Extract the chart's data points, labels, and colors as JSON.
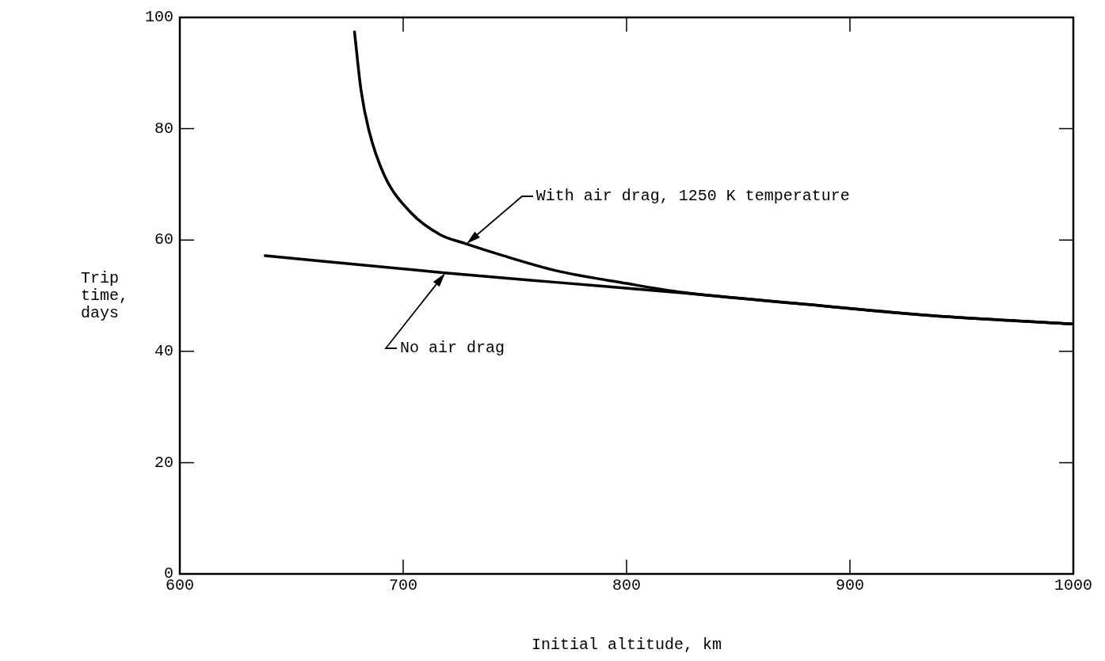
{
  "chart_data": {
    "type": "line",
    "xlabel": "Initial altitude, km",
    "ylabel": "Trip time, days",
    "xlim": [
      600,
      1000
    ],
    "xticks": [
      600,
      700,
      800,
      900,
      1000
    ],
    "ylim": [
      0,
      100
    ],
    "yticks": [
      0,
      20,
      40,
      60,
      80,
      100
    ],
    "grid": false,
    "legend": false,
    "marker": "none",
    "line_style": "solid",
    "series": [
      {
        "color": "#000000",
        "x": [
          678.2,
          681.1,
          684.6,
          691.6,
          703.5,
          716.4,
          728.3,
          744.7,
          768.4,
          800,
          825,
          878.7,
          937,
          1000
        ],
        "values": [
          97.4,
          87.0,
          79.8,
          71.6,
          64.9,
          61.0,
          59.3,
          57.2,
          54.5,
          52.2,
          50.6,
          48.5,
          46.4,
          44.9
        ]
      },
      {
        "color": "#000000",
        "x": [
          638.2,
          718.8,
          768.4,
          825,
          878.7,
          937,
          1000
        ],
        "values": [
          57.2,
          54.1,
          52.4,
          50.5,
          48.5,
          46.4,
          44.9
        ]
      }
    ],
    "annotations": [
      "With air drag, 1250 K temperature",
      "No air drag"
    ]
  }
}
